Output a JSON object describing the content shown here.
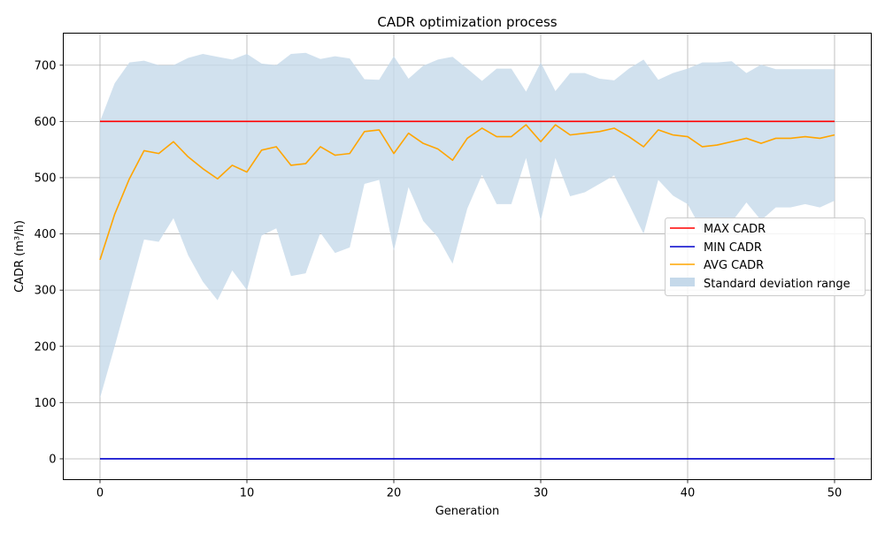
{
  "chart_data": {
    "type": "line",
    "title": "CADR optimization process",
    "xlabel": "Generation",
    "ylabel": "CADR (m³/h)",
    "xlim": [
      -2.5,
      52.5
    ],
    "ylim": [
      -37,
      757
    ],
    "xticks": [
      0,
      10,
      20,
      30,
      40,
      50
    ],
    "yticks": [
      0,
      100,
      200,
      300,
      400,
      500,
      600,
      700
    ],
    "grid": true,
    "legend_position": "center-right",
    "x": [
      0,
      1,
      2,
      3,
      4,
      5,
      6,
      7,
      8,
      9,
      10,
      11,
      12,
      13,
      14,
      15,
      16,
      17,
      18,
      19,
      20,
      21,
      22,
      23,
      24,
      25,
      26,
      27,
      28,
      29,
      30,
      31,
      32,
      33,
      34,
      35,
      36,
      37,
      38,
      39,
      40,
      41,
      42,
      43,
      44,
      45,
      46,
      47,
      48,
      49,
      50
    ],
    "series": [
      {
        "name": "MAX CADR",
        "color": "#ff0000",
        "values": [
          600,
          600,
          600,
          600,
          600,
          600,
          600,
          600,
          600,
          600,
          600,
          600,
          600,
          600,
          600,
          600,
          600,
          600,
          600,
          600,
          600,
          600,
          600,
          600,
          600,
          600,
          600,
          600,
          600,
          600,
          600,
          600,
          600,
          600,
          600,
          600,
          600,
          600,
          600,
          600,
          600,
          600,
          600,
          600,
          600,
          600,
          600,
          600,
          600,
          600,
          600
        ]
      },
      {
        "name": "MIN CADR",
        "color": "#0000cc",
        "values": [
          0,
          0,
          0,
          0,
          0,
          0,
          0,
          0,
          0,
          0,
          0,
          0,
          0,
          0,
          0,
          0,
          0,
          0,
          0,
          0,
          0,
          0,
          0,
          0,
          0,
          0,
          0,
          0,
          0,
          0,
          0,
          0,
          0,
          0,
          0,
          0,
          0,
          0,
          0,
          0,
          0,
          0,
          0,
          0,
          0,
          0,
          0,
          0,
          0,
          0,
          0
        ]
      },
      {
        "name": "AVG CADR",
        "color": "#ffa500",
        "values": [
          354,
          435,
          498,
          548,
          543,
          564,
          537,
          516,
          498,
          522,
          510,
          549,
          555,
          522,
          525,
          555,
          540,
          543,
          582,
          585,
          543,
          579,
          561,
          551,
          531,
          570,
          588,
          573,
          573,
          594,
          564,
          594,
          576,
          579,
          582,
          588,
          573,
          555,
          585,
          576,
          573,
          555,
          558,
          564,
          570,
          561,
          570,
          570,
          573,
          570,
          576
        ]
      }
    ],
    "band": {
      "name": "Standard deviation range",
      "color": "#c5d9ea",
      "upper": [
        600,
        668,
        705,
        708,
        700,
        700,
        713,
        720,
        715,
        710,
        720,
        703,
        700,
        720,
        722,
        711,
        716,
        712,
        675,
        674,
        716,
        676,
        699,
        710,
        715,
        694,
        672,
        694,
        694,
        653,
        705,
        654,
        686,
        686,
        676,
        673,
        694,
        710,
        674,
        686,
        694,
        705,
        705,
        707,
        686,
        701,
        693,
        693,
        693,
        693,
        693
      ],
      "lower": [
        108,
        200,
        295,
        390,
        386,
        428,
        362,
        315,
        282,
        335,
        300,
        397,
        410,
        325,
        330,
        402,
        366,
        376,
        489,
        496,
        370,
        483,
        423,
        394,
        347,
        445,
        505,
        453,
        453,
        535,
        423,
        535,
        467,
        474,
        489,
        504,
        453,
        400,
        496,
        468,
        453,
        405,
        411,
        421,
        456,
        424,
        447,
        447,
        453,
        447,
        459
      ]
    }
  }
}
